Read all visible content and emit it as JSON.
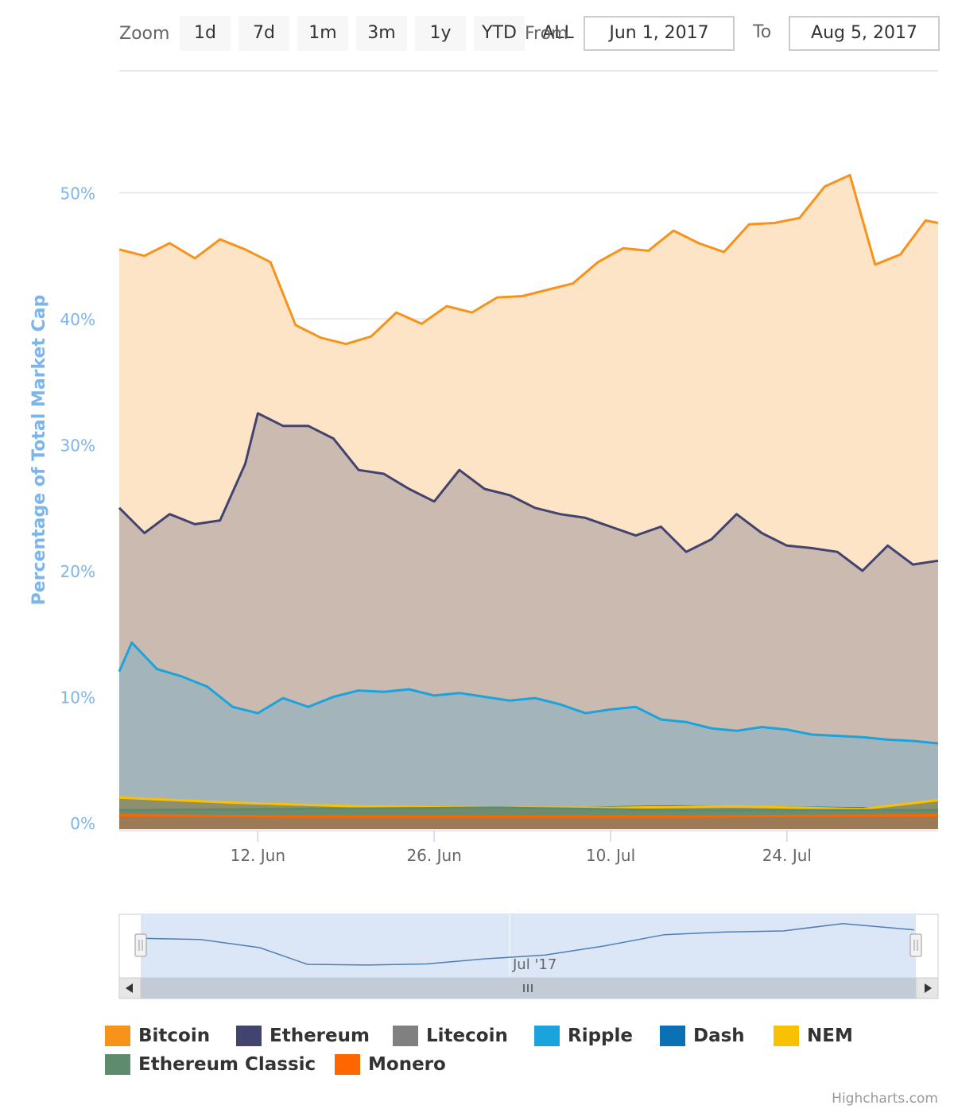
{
  "range_selector": {
    "zoom_label": "Zoom",
    "buttons": [
      "1d",
      "7d",
      "1m",
      "3m",
      "1y",
      "YTD",
      "ALL"
    ],
    "from_label": "From",
    "from_value": "Jun 1, 2017",
    "to_label": "To",
    "to_value": "Aug 5, 2017"
  },
  "credits": "Highcharts.com",
  "chart_data": {
    "type": "area",
    "ylabel": "Percentage of Total Market Cap",
    "ylim": [
      0,
      55
    ],
    "y_ticks": [
      "0%",
      "10%",
      "20%",
      "30%",
      "40%",
      "50%"
    ],
    "x_range": [
      "2017-06-01",
      "2017-08-05"
    ],
    "x_ticks": [
      "12. Jun",
      "26. Jun",
      "10. Jul",
      "24. Jul"
    ],
    "navigator_label": "Jul '17",
    "grid": true,
    "legend_position": "bottom",
    "series": [
      {
        "name": "Bitcoin",
        "color": "#f7931a",
        "fill": "#fde4c6",
        "x": [
          "2017-06-01",
          "2017-06-03",
          "2017-06-05",
          "2017-06-07",
          "2017-06-09",
          "2017-06-11",
          "2017-06-13",
          "2017-06-15",
          "2017-06-17",
          "2017-06-19",
          "2017-06-21",
          "2017-06-23",
          "2017-06-25",
          "2017-06-27",
          "2017-06-29",
          "2017-07-01",
          "2017-07-03",
          "2017-07-05",
          "2017-07-07",
          "2017-07-09",
          "2017-07-11",
          "2017-07-13",
          "2017-07-15",
          "2017-07-17",
          "2017-07-19",
          "2017-07-21",
          "2017-07-23",
          "2017-07-25",
          "2017-07-27",
          "2017-07-29",
          "2017-07-31",
          "2017-08-02",
          "2017-08-04",
          "2017-08-05"
        ],
        "values": [
          45.5,
          45.0,
          46.0,
          44.8,
          46.3,
          45.5,
          44.5,
          39.5,
          38.5,
          38.0,
          38.6,
          40.5,
          39.6,
          41.0,
          40.5,
          41.7,
          41.8,
          42.3,
          42.8,
          44.5,
          45.6,
          45.4,
          47.0,
          46.0,
          45.3,
          47.5,
          47.6,
          48.0,
          50.5,
          51.4,
          44.3,
          45.1,
          47.8,
          47.6
        ]
      },
      {
        "name": "Ethereum",
        "color": "#434370",
        "fill": "#cbbab0",
        "x": [
          "2017-06-01",
          "2017-06-03",
          "2017-06-05",
          "2017-06-07",
          "2017-06-09",
          "2017-06-11",
          "2017-06-12",
          "2017-06-14",
          "2017-06-16",
          "2017-06-18",
          "2017-06-20",
          "2017-06-22",
          "2017-06-24",
          "2017-06-26",
          "2017-06-28",
          "2017-06-30",
          "2017-07-02",
          "2017-07-04",
          "2017-07-06",
          "2017-07-08",
          "2017-07-10",
          "2017-07-12",
          "2017-07-14",
          "2017-07-16",
          "2017-07-18",
          "2017-07-20",
          "2017-07-22",
          "2017-07-24",
          "2017-07-26",
          "2017-07-28",
          "2017-07-30",
          "2017-08-01",
          "2017-08-03",
          "2017-08-05"
        ],
        "values": [
          25.0,
          23.0,
          24.5,
          23.7,
          24.0,
          28.5,
          32.5,
          31.5,
          31.5,
          30.5,
          28.0,
          27.7,
          26.5,
          25.5,
          28.0,
          26.5,
          26.0,
          25.0,
          24.5,
          24.2,
          23.5,
          22.8,
          23.5,
          21.5,
          22.5,
          24.5,
          23.0,
          22.0,
          21.8,
          21.5,
          20.0,
          22.0,
          20.5,
          20.8
        ]
      },
      {
        "name": "Litecoin",
        "color": "#808080",
        "fill": "#7e9e80",
        "x": [
          "2017-06-01",
          "2017-06-10",
          "2017-06-20",
          "2017-06-30",
          "2017-07-10",
          "2017-07-20",
          "2017-07-30",
          "2017-08-05"
        ],
        "values": [
          1.5,
          1.4,
          1.8,
          1.9,
          2.3,
          2.5,
          2.1,
          2.0
        ]
      },
      {
        "name": "Ripple",
        "color": "#1aa3dc",
        "fill": "#a3b5bb",
        "x": [
          "2017-06-01",
          "2017-06-02",
          "2017-06-04",
          "2017-06-06",
          "2017-06-08",
          "2017-06-10",
          "2017-06-12",
          "2017-06-14",
          "2017-06-16",
          "2017-06-18",
          "2017-06-20",
          "2017-06-22",
          "2017-06-24",
          "2017-06-26",
          "2017-06-28",
          "2017-06-30",
          "2017-07-02",
          "2017-07-04",
          "2017-07-06",
          "2017-07-08",
          "2017-07-10",
          "2017-07-12",
          "2017-07-14",
          "2017-07-16",
          "2017-07-18",
          "2017-07-20",
          "2017-07-22",
          "2017-07-24",
          "2017-07-26",
          "2017-07-28",
          "2017-07-30",
          "2017-08-01",
          "2017-08-03",
          "2017-08-05"
        ],
        "values": [
          12.0,
          14.3,
          12.2,
          11.6,
          10.8,
          9.2,
          8.7,
          9.9,
          9.2,
          10.0,
          10.5,
          10.4,
          10.6,
          10.1,
          10.3,
          10.0,
          9.7,
          9.9,
          9.4,
          8.7,
          9.0,
          9.2,
          8.2,
          8.0,
          7.5,
          7.3,
          7.6,
          7.4,
          7.0,
          6.9,
          6.8,
          6.6,
          6.5,
          6.3
        ]
      },
      {
        "name": "Dash",
        "color": "#0c70b4",
        "fill": "#6a8d76",
        "x": [
          "2017-06-01",
          "2017-06-15",
          "2017-07-01",
          "2017-07-15",
          "2017-08-05"
        ],
        "values": [
          1.2,
          1.0,
          1.1,
          1.3,
          1.1
        ]
      },
      {
        "name": "NEM",
        "color": "#f8c103",
        "fill": "#8e8f6e",
        "x": [
          "2017-06-01",
          "2017-06-10",
          "2017-06-20",
          "2017-06-30",
          "2017-07-10",
          "2017-07-20",
          "2017-07-30",
          "2017-08-05"
        ],
        "values": [
          2.0,
          1.6,
          1.3,
          1.2,
          1.2,
          1.3,
          1.1,
          1.8
        ]
      },
      {
        "name": "Ethereum Classic",
        "color": "#5e8b6e",
        "fill": "#6f8c6f",
        "x": [
          "2017-06-01",
          "2017-06-15",
          "2017-07-01",
          "2017-07-15",
          "2017-08-05"
        ],
        "values": [
          1.0,
          1.1,
          1.2,
          1.0,
          1.0
        ]
      },
      {
        "name": "Monero",
        "color": "#ff6600",
        "fill": "#9b7a55",
        "x": [
          "2017-06-01",
          "2017-06-15",
          "2017-07-01",
          "2017-07-15",
          "2017-08-05"
        ],
        "values": [
          0.6,
          0.5,
          0.5,
          0.5,
          0.6
        ]
      }
    ],
    "navigator": {
      "x": [
        "2017-06-01",
        "2017-06-06",
        "2017-06-11",
        "2017-06-15",
        "2017-06-20",
        "2017-06-25",
        "2017-06-30",
        "2017-07-05",
        "2017-07-10",
        "2017-07-15",
        "2017-07-20",
        "2017-07-25",
        "2017-07-30",
        "2017-08-05"
      ],
      "values": [
        45.5,
        45.2,
        43.0,
        38.5,
        38.3,
        38.6,
        40.0,
        41.0,
        43.5,
        46.5,
        47.2,
        47.5,
        49.5,
        47.8
      ]
    }
  }
}
